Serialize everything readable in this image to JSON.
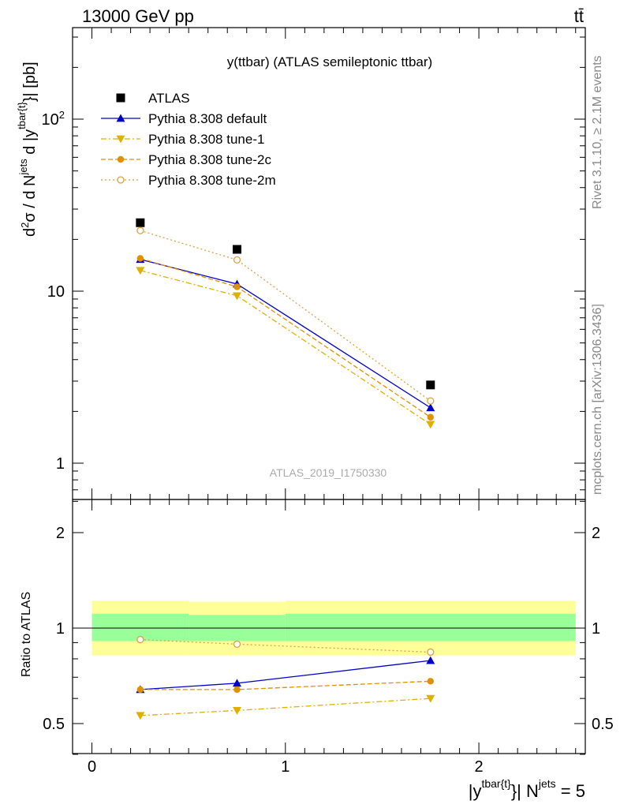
{
  "header": {
    "energy": "13000 GeV pp",
    "process": "tt̄"
  },
  "side_labels": {
    "rivet": "Rivet 3.1.10, ≥ 2.1M events",
    "mcplots": "mcplots.cern.ch [arXiv:1306.3436]"
  },
  "colors": {
    "data": "#000000",
    "default": "#0000cc",
    "tune1": "#e0b000",
    "tune2c": "#e09000",
    "tune2m": "#e0a040",
    "band_inner": "#99ff99",
    "band_outer": "#ffff99"
  },
  "chart_data": [
    {
      "type": "line",
      "title": "y(ttbar) (ATLAS semileptonic ttbar)",
      "watermark": "ATLAS_2019_I1750330",
      "ylabel": "d²σ / d N^jets d |y^tbar{t}| [pb]",
      "yscale": "log",
      "ylim": [
        0.6,
        330
      ],
      "xlim": [
        -0.1,
        2.55
      ],
      "x_ticks": [
        "0",
        "1",
        "2"
      ],
      "y_ticks": [
        "1",
        "10",
        "10²"
      ],
      "x": [
        0.25,
        0.75,
        1.75
      ],
      "legend_position": "top-left",
      "series": [
        {
          "name": "ATLAS",
          "key": "atlas",
          "marker": "square",
          "values": [
            25.0,
            17.5,
            2.85
          ]
        },
        {
          "name": "Pythia 8.308 default",
          "key": "default",
          "marker": "triangle-up",
          "line": "solid",
          "values": [
            15.3,
            11.0,
            2.1
          ]
        },
        {
          "name": "Pythia 8.308 tune-1",
          "key": "tune1",
          "marker": "triangle-down",
          "line": "dashdot",
          "values": [
            13.2,
            9.4,
            1.68
          ]
        },
        {
          "name": "Pythia 8.308 tune-2c",
          "key": "tune2c",
          "marker": "circle",
          "line": "dashed",
          "values": [
            15.5,
            10.6,
            1.85
          ]
        },
        {
          "name": "Pythia 8.308 tune-2m",
          "key": "tune2m",
          "marker": "open-circle",
          "line": "dotted",
          "values": [
            22.5,
            15.2,
            2.3
          ]
        }
      ]
    },
    {
      "type": "line",
      "ylabel": "Ratio to ATLAS",
      "xlabel": "|y^tbar{t}| N^jets = 5",
      "ylim": [
        0.35,
        2.3
      ],
      "xlim": [
        -0.1,
        2.55
      ],
      "x_ticks": [
        "0",
        "1",
        "2"
      ],
      "y_ticks": [
        "0.5",
        "1",
        "2"
      ],
      "x": [
        0.25,
        0.75,
        1.75
      ],
      "bands": {
        "edges": [
          0,
          0.5,
          1.0,
          2.5
        ],
        "inner": [
          [
            0.91,
            1.11
          ],
          [
            0.91,
            1.1
          ],
          [
            0.91,
            1.11
          ]
        ],
        "outer": [
          [
            0.82,
            1.22
          ],
          [
            0.82,
            1.21
          ],
          [
            0.82,
            1.22
          ]
        ]
      },
      "series": [
        {
          "name": "Pythia 8.308 default",
          "key": "default",
          "marker": "triangle-up",
          "line": "solid",
          "values": [
            0.64,
            0.67,
            0.79
          ]
        },
        {
          "name": "Pythia 8.308 tune-1",
          "key": "tune1",
          "marker": "triangle-down",
          "line": "dashdot",
          "values": [
            0.53,
            0.55,
            0.6
          ]
        },
        {
          "name": "Pythia 8.308 tune-2c",
          "key": "tune2c",
          "marker": "circle",
          "line": "dashed",
          "values": [
            0.64,
            0.64,
            0.68
          ]
        },
        {
          "name": "Pythia 8.308 tune-2m",
          "key": "tune2m",
          "marker": "open-circle",
          "line": "dotted",
          "values": [
            0.92,
            0.89,
            0.84
          ]
        }
      ]
    }
  ]
}
